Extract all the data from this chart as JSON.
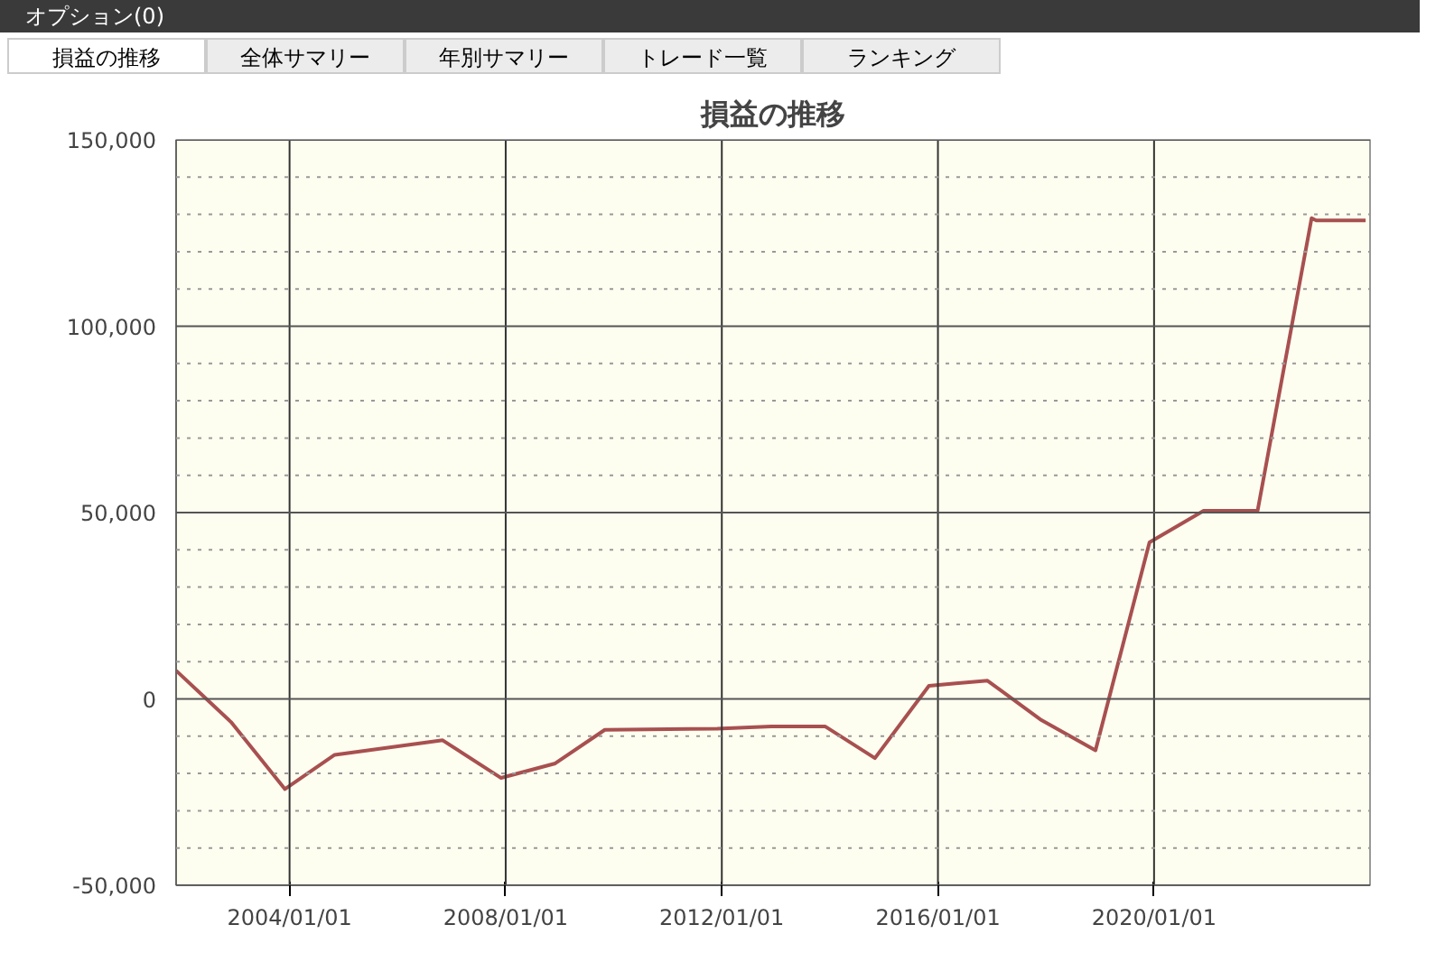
{
  "chart_data": {
    "type": "line",
    "title": "損益の推移",
    "annotations": [
      "オプション(0)",
      "損益の推移",
      "全体サマリー",
      "年別サマリー",
      "トレード一覧",
      "ランキング"
    ],
    "x": [
      "2001-11-25",
      "2002-12",
      "2003-12",
      "2004-11",
      "2006-11",
      "2007-12",
      "2008-12",
      "2009-11",
      "2011-12",
      "2012-12",
      "2013-12",
      "2014-11",
      "2015-11",
      "2016-05",
      "2016-12",
      "2017-12",
      "2018-12",
      "2019-12",
      "2020-12",
      "2021-12",
      "2022-12",
      "2023-01",
      "2023-12"
    ],
    "series": [
      {
        "color": "#a85050",
        "values": [
          7600,
          -6200,
          -24200,
          -15000,
          -11100,
          -21200,
          -17300,
          -8300,
          -8000,
          -7400,
          -7400,
          -15900,
          3500,
          4200,
          4900,
          -5700,
          -13800,
          42000,
          50500,
          50500,
          129000,
          128400,
          128400
        ]
      }
    ],
    "xlim": [
      "2001-11-25",
      "2023-12-31"
    ],
    "xticks": [
      {
        "value": "2004-01-01",
        "label": "2004/01/01"
      },
      {
        "value": "2008-01-01",
        "label": "2008/01/01"
      },
      {
        "value": "2012-01-01",
        "label": "2012/01/01"
      },
      {
        "value": "2016-01-01",
        "label": "2016/01/01"
      },
      {
        "value": "2020-01-01",
        "label": "2020/01/01"
      }
    ],
    "ylim": [
      -50000,
      150000
    ],
    "yticks": [
      {
        "value": -50000,
        "label": "-50,000"
      },
      {
        "value": -40000,
        "label": null
      },
      {
        "value": -30000,
        "label": null
      },
      {
        "value": -20000,
        "label": null
      },
      {
        "value": -10000,
        "label": null
      },
      {
        "value": 0,
        "label": "0"
      },
      {
        "value": 10000,
        "label": null
      },
      {
        "value": 20000,
        "label": null
      },
      {
        "value": 30000,
        "label": null
      },
      {
        "value": 40000,
        "label": null
      },
      {
        "value": 50000,
        "label": "50,000"
      },
      {
        "value": 60000,
        "label": null
      },
      {
        "value": 70000,
        "label": null
      },
      {
        "value": 80000,
        "label": null
      },
      {
        "value": 90000,
        "label": null
      },
      {
        "value": 100000,
        "label": "100,000"
      },
      {
        "value": 110000,
        "label": null
      },
      {
        "value": 120000,
        "label": null
      },
      {
        "value": 130000,
        "label": null
      },
      {
        "value": 140000,
        "label": null
      },
      {
        "value": 150000,
        "label": "150,000"
      }
    ],
    "grid": true,
    "line_style": "solid"
  }
}
